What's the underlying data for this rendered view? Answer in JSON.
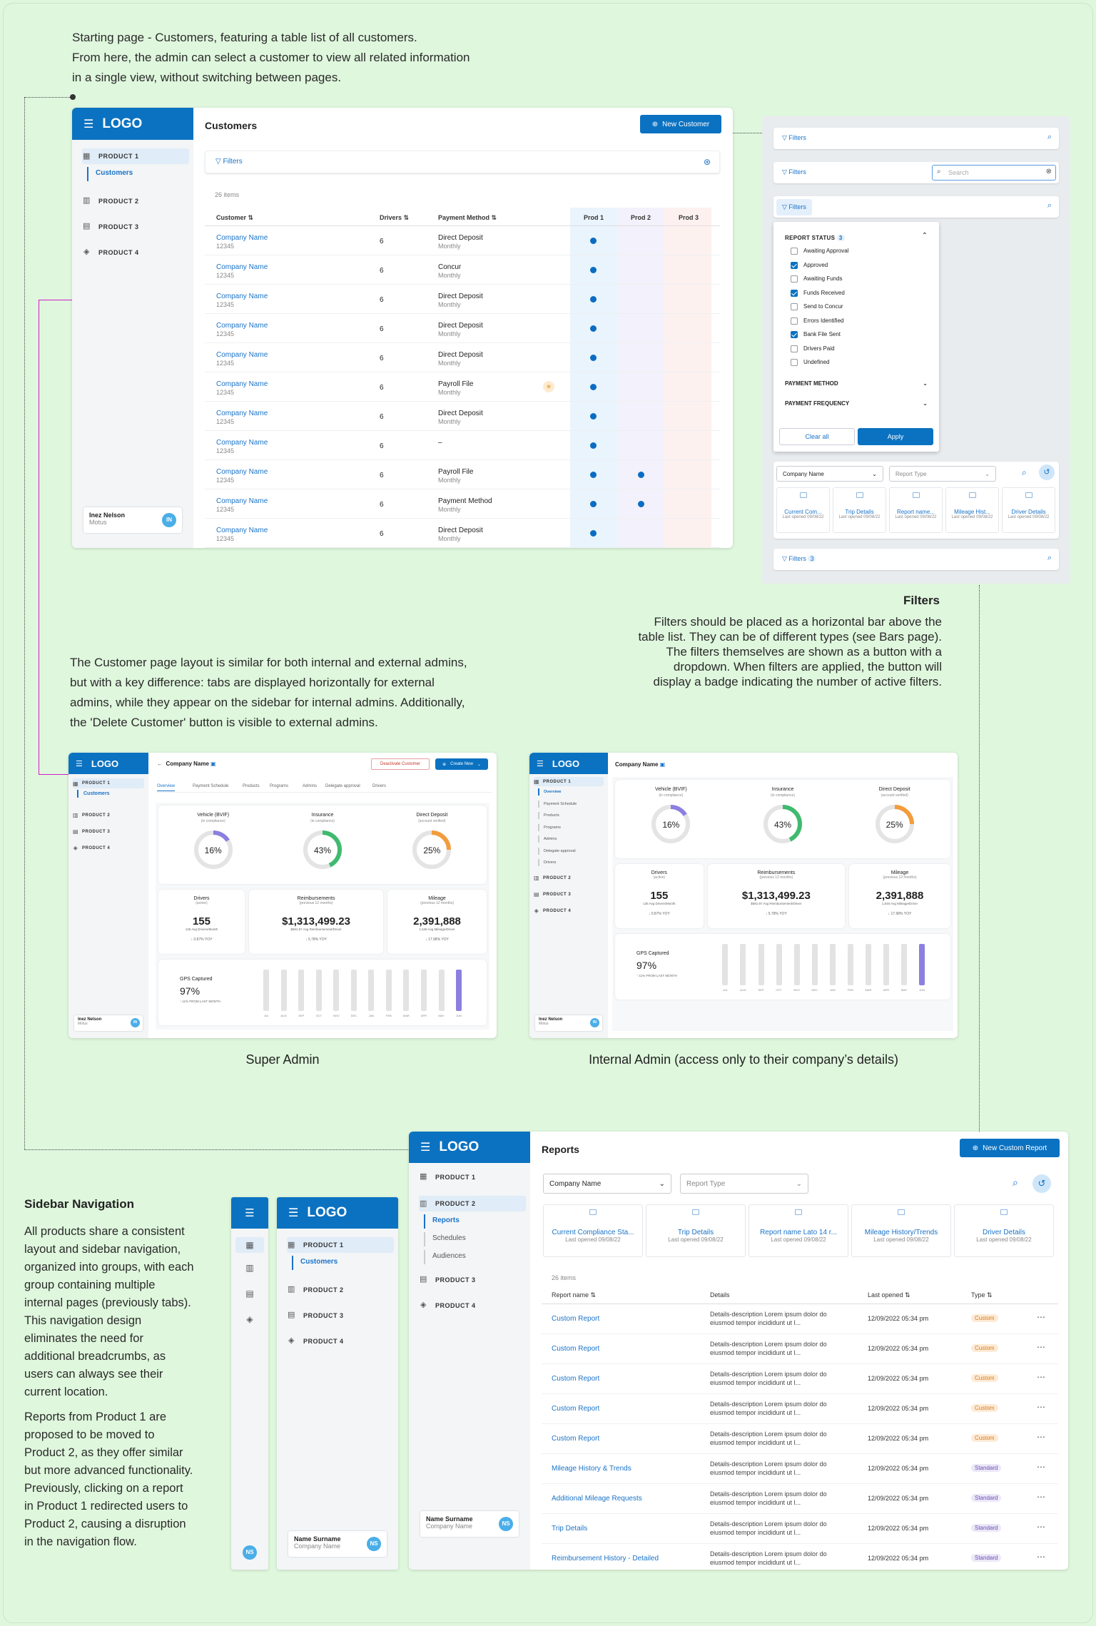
{
  "notes": {
    "intro": [
      "Starting page - Customers, featuring a table list of all customers.",
      "From here, the admin can select a customer to view all related information",
      "in a single view, without switching between pages."
    ],
    "layout": [
      "The Customer page layout is similar for both internal and external admins,",
      "but with a key difference: tabs are displayed horizontally for external",
      "admins, while they appear on the sidebar for internal admins. Additionally,",
      "the 'Delete Customer' button is visible to external admins."
    ],
    "filters_title": "Filters",
    "filters": [
      "Filters should be placed as a horizontal bar above the",
      "table list. They can be of different types (see Bars page).",
      "The filters themselves are shown as a button with a",
      "dropdown. When filters are applied, the button will",
      "display a badge indicating the number of active filters."
    ],
    "super_admin": "Super Admin",
    "internal_admin": "Internal Admin (access only to their company’s details)",
    "sidebar_title": "Sidebar Navigation",
    "sidebar_p1": [
      "All products share a consistent",
      "layout and sidebar navigation,",
      "organized into groups, with each",
      "group containing multiple",
      "internal pages (previously tabs).",
      "This navigation design",
      "eliminates the need for",
      "additional breadcrumbs, as",
      "users can always see their",
      "current location."
    ],
    "sidebar_p2": [
      "Reports from Product 1 are",
      "proposed to be moved to",
      "Product 2, as they offer similar",
      "but more advanced functionality.",
      "Previously, clicking on a report",
      "in Product 1 redirected users to",
      "Product 2, causing a disruption",
      "in the navigation flow."
    ]
  },
  "logo": "LOGO",
  "nav": {
    "p1": "PRODUCT 1",
    "p2": "PRODUCT 2",
    "p3": "PRODUCT 3",
    "p4": "PRODUCT 4",
    "customers": "Customers",
    "reports": "Reports",
    "schedules": "Schedules",
    "audiences": "Audiences"
  },
  "customers": {
    "title": "Customers",
    "new_btn": "New Customer",
    "filters": "Filters",
    "count": "26 items",
    "cols": {
      "customer": "Customer",
      "drivers": "Drivers",
      "payment": "Payment Method",
      "prod1": "Prod 1",
      "prod2": "Prod 2",
      "prod3": "Prod 3"
    },
    "rows": [
      {
        "name": "Company Name",
        "id": "12345",
        "drivers": "6",
        "pm": "Direct Deposit",
        "freq": "Monthly",
        "p2": false,
        "star": false
      },
      {
        "name": "Company Name",
        "id": "12345",
        "drivers": "6",
        "pm": "Concur",
        "freq": "Monthly",
        "p2": false,
        "star": false
      },
      {
        "name": "Company Name",
        "id": "12345",
        "drivers": "6",
        "pm": "Direct Deposit",
        "freq": "Monthly",
        "p2": false,
        "star": false
      },
      {
        "name": "Company Name",
        "id": "12345",
        "drivers": "6",
        "pm": "Direct Deposit",
        "freq": "Monthly",
        "p2": false,
        "star": false
      },
      {
        "name": "Company Name",
        "id": "12345",
        "drivers": "6",
        "pm": "Direct Deposit",
        "freq": "Monthly",
        "p2": false,
        "star": false
      },
      {
        "name": "Company Name",
        "id": "12345",
        "drivers": "6",
        "pm": "Payroll File",
        "freq": "Monthly",
        "p2": false,
        "star": true
      },
      {
        "name": "Company Name",
        "id": "12345",
        "drivers": "6",
        "pm": "Direct Deposit",
        "freq": "Monthly",
        "p2": false,
        "star": false
      },
      {
        "name": "Company Name",
        "id": "12345",
        "drivers": "6",
        "pm": "–",
        "freq": "",
        "p2": false,
        "star": false
      },
      {
        "name": "Company Name",
        "id": "12345",
        "drivers": "6",
        "pm": "Payroll File",
        "freq": "Monthly",
        "p2": true,
        "star": false
      },
      {
        "name": "Company Name",
        "id": "12345",
        "drivers": "6",
        "pm": "Payment Method",
        "freq": "Monthly",
        "p2": true,
        "star": false
      },
      {
        "name": "Company Name",
        "id": "12345",
        "drivers": "6",
        "pm": "Direct Deposit",
        "freq": "Monthly",
        "p2": false,
        "star": false
      }
    ],
    "user": {
      "name": "Inez Nelson",
      "org": "Motus",
      "initials": "IN"
    }
  },
  "filterpanel": {
    "filters": "Filters",
    "search": "Search",
    "report_status": "REPORT STATUS",
    "status_count": "3",
    "options": [
      {
        "l": "Awaiting Approval",
        "c": false
      },
      {
        "l": "Approved",
        "c": true
      },
      {
        "l": "Awaiting Funds",
        "c": false
      },
      {
        "l": "Funds Received",
        "c": true
      },
      {
        "l": "Send to Concur",
        "c": false
      },
      {
        "l": "Errors Identified",
        "c": false
      },
      {
        "l": "Bank File Sent",
        "c": true
      },
      {
        "l": "Drivers Paid",
        "c": false
      },
      {
        "l": "Undefined",
        "c": false
      }
    ],
    "payment_method": "PAYMENT METHOD",
    "payment_frequency": "PAYMENT FREQUENCY",
    "clear": "Clear all",
    "apply": "Apply",
    "company_name": "Company Name",
    "report_type": "Report Type",
    "tiles": [
      {
        "n": "Current Com...",
        "s": "Last opened 09/08/22"
      },
      {
        "n": "Trip Details",
        "s": "Last opened 09/08/22"
      },
      {
        "n": "Report name...",
        "s": "Last opened 09/08/22"
      },
      {
        "n": "Mileage Hist...",
        "s": "Last opened 09/08/22"
      },
      {
        "n": "Driver Details",
        "s": "Last opened 09/08/22"
      }
    ],
    "badge": "3"
  },
  "company": {
    "title": "Company Name",
    "deactivate": "Deactivate Customer",
    "create": "Create New",
    "tabs": [
      "Overview",
      "Payment Schedule",
      "Products",
      "Programs",
      "Admins",
      "Delegate approval",
      "Drivers"
    ],
    "kpis": [
      {
        "t": "Vehicle (BVIF)",
        "s": "(in compliance)",
        "v": "16%",
        "p": 16,
        "c": "#8b7fe0"
      },
      {
        "t": "Insurance",
        "s": "(in compliance)",
        "v": "43%",
        "p": 43,
        "c": "#3fba6f"
      },
      {
        "t": "Direct Deposit",
        "s": "(account verified)",
        "v": "25%",
        "p": 25,
        "c": "#f39c3c"
      }
    ],
    "stats": [
      {
        "t": "Drivers",
        "s": "(active)",
        "v": "155",
        "d": "135 Avg Drivers/Month",
        "f": "↓ 0.87% YOY"
      },
      {
        "t": "Reimbursements",
        "s": "(previous 12 months)",
        "v": "$1,313,499.23",
        "d": "$581.97 Avg Reimbursement/Driver",
        "f": "↓ 5.78% YOY"
      },
      {
        "t": "Mileage",
        "s": "(previous 12 months)",
        "v": "2,391,888",
        "d": "1,546 Avg Mileage/Driver",
        "f": "↓ 17.98% YOY"
      }
    ],
    "gps": {
      "t": "GPS Captured",
      "v": "97%",
      "f": "↑ 11% FROM LAST MONTH",
      "months": [
        "JUL",
        "AUG",
        "SEP",
        "OCT",
        "NOV",
        "DEC",
        "JAN",
        "FEB",
        "MAR",
        "APR",
        "MAY",
        "JUN"
      ]
    },
    "user": {
      "name": "Inez Nelson",
      "org": "Motus",
      "initials": "IN"
    },
    "overview": "Overview",
    "payment_schedule": "Payment Schedule",
    "products": "Products",
    "programs": "Programs",
    "admins": "Admins",
    "delegate": "Delegate approval",
    "drivers": "Drivers"
  },
  "reports": {
    "title": "Reports",
    "new_btn": "New Custom Report",
    "company_name": "Company Name",
    "report_type": "Report Type",
    "count": "26 items",
    "tiles": [
      {
        "n": "Current Compliance Sta...",
        "s": "Last opened 09/08/22"
      },
      {
        "n": "Trip Details",
        "s": "Last opened 09/08/22"
      },
      {
        "n": "Report name Lato 14 r...",
        "s": "Last opened 09/08/22"
      },
      {
        "n": "Mileage History/Trends",
        "s": "Last opened 09/08/22"
      },
      {
        "n": "Driver Details",
        "s": "Last opened 09/08/22"
      }
    ],
    "cols": {
      "name": "Report name",
      "details": "Details",
      "opened": "Last opened",
      "type": "Type"
    },
    "rows": [
      {
        "n": "Custom Report",
        "d1": "Details-description  Lorem ipsum dolor do",
        "d2": "eiusmod tempor incididunt ut l...",
        "o": "12/09/2022 05:34 pm",
        "t": "Custom"
      },
      {
        "n": "Custom Report",
        "d1": "Details-description  Lorem ipsum dolor do",
        "d2": "eiusmod tempor incididunt ut l...",
        "o": "12/09/2022 05:34 pm",
        "t": "Custom"
      },
      {
        "n": "Custom Report",
        "d1": "Details-description  Lorem ipsum dolor do",
        "d2": "eiusmod tempor incididunt ut l...",
        "o": "12/09/2022 05:34 pm",
        "t": "Custom"
      },
      {
        "n": "Custom Report",
        "d1": "Details-description  Lorem ipsum dolor do",
        "d2": "eiusmod tempor incididunt ut l...",
        "o": "12/09/2022 05:34 pm",
        "t": "Custom"
      },
      {
        "n": "Custom Report",
        "d1": "Details-description  Lorem ipsum dolor do",
        "d2": "eiusmod tempor incididunt ut l...",
        "o": "12/09/2022 05:34 pm",
        "t": "Custom"
      },
      {
        "n": "Mileage History & Trends",
        "d1": "Details-description  Lorem ipsum dolor do",
        "d2": "eiusmod tempor incididunt ut l...",
        "o": "12/09/2022 05:34 pm",
        "t": "Standard"
      },
      {
        "n": "Additional Mileage Requests",
        "d1": "Details-description  Lorem ipsum dolor do",
        "d2": "eiusmod tempor incididunt ut l...",
        "o": "12/09/2022 05:34 pm",
        "t": "Standard"
      },
      {
        "n": "Trip Details",
        "d1": "Details-description  Lorem ipsum dolor do",
        "d2": "eiusmod tempor incididunt ut l...",
        "o": "12/09/2022 05:34 pm",
        "t": "Standard"
      },
      {
        "n": "Reimbursement History - Detailed",
        "d1": "Details-description  Lorem ipsum dolor do",
        "d2": "eiusmod tempor incididunt ut l...",
        "o": "12/09/2022 05:34 pm",
        "t": "Standard"
      }
    ],
    "user": {
      "name": "Name Surname",
      "org": "Company Name",
      "initials": "NS"
    }
  }
}
